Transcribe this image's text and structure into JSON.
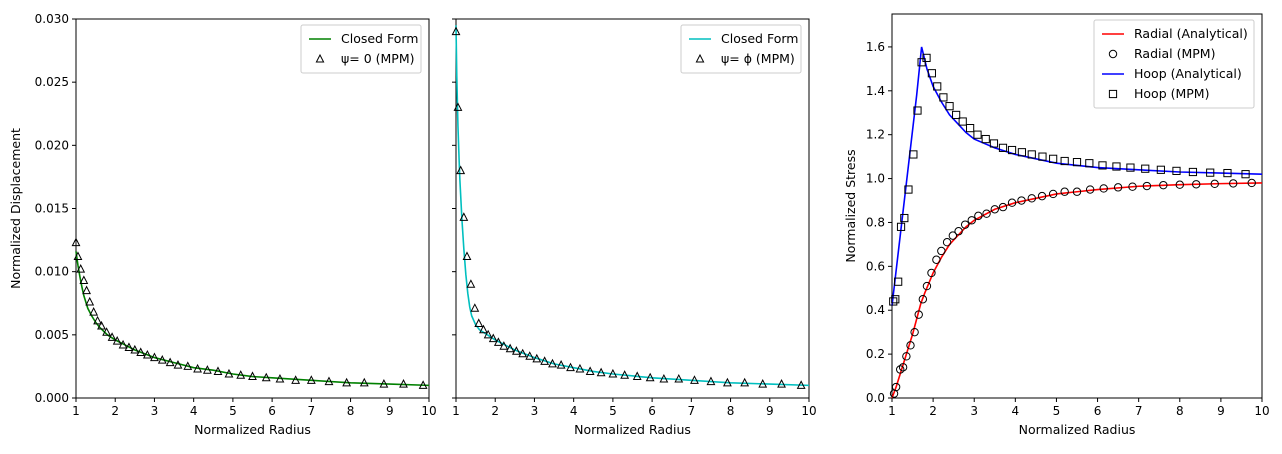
{
  "chart_data": [
    {
      "type": "line",
      "title": "",
      "xlabel": "Normalized Radius",
      "ylabel": "Normalized Displacement",
      "xlim": [
        1,
        10
      ],
      "ylim": [
        0,
        0.03
      ],
      "xticks": [
        1,
        2,
        3,
        4,
        5,
        6,
        7,
        8,
        9,
        10
      ],
      "xtick_labels": [
        "1",
        "2",
        "3",
        "4",
        "5",
        "6",
        "7",
        "8",
        "9",
        "10"
      ],
      "yticks": [
        0,
        0.005,
        0.01,
        0.015,
        0.02,
        0.025,
        0.03
      ],
      "ytick_labels": [
        "0.000",
        "0.005",
        "0.010",
        "0.015",
        "0.020",
        "0.025",
        "0.030"
      ],
      "legend_position": "top-right",
      "grid": false,
      "series": [
        {
          "name": "Closed Form",
          "kind": "line",
          "color": "#008000",
          "x": [
            1.0,
            1.05,
            1.1,
            1.15,
            1.2,
            1.3,
            1.4,
            1.5,
            1.6,
            1.8,
            2.0,
            2.25,
            2.5,
            2.75,
            3.0,
            3.5,
            4.0,
            4.5,
            5.0,
            5.5,
            6.0,
            7.0,
            8.0,
            9.0,
            10.0
          ],
          "y": [
            0.0116,
            0.0105,
            0.0096,
            0.0088,
            0.0081,
            0.0071,
            0.0065,
            0.006,
            0.0056,
            0.005,
            0.0046,
            0.0042,
            0.0038,
            0.0035,
            0.0032,
            0.0028,
            0.0024,
            0.0022,
            0.0019,
            0.0017,
            0.0016,
            0.0014,
            0.0012,
            0.0011,
            0.001
          ]
        },
        {
          "name": "ψ= 0 (MPM)",
          "kind": "markers",
          "marker": "triangle",
          "color": "#000000",
          "x": [
            1.0,
            1.05,
            1.12,
            1.2,
            1.27,
            1.35,
            1.45,
            1.55,
            1.65,
            1.78,
            1.92,
            2.05,
            2.2,
            2.35,
            2.5,
            2.65,
            2.82,
            3.0,
            3.2,
            3.4,
            3.6,
            3.85,
            4.1,
            4.35,
            4.62,
            4.9,
            5.2,
            5.5,
            5.85,
            6.2,
            6.6,
            7.0,
            7.45,
            7.9,
            8.35,
            8.85,
            9.35,
            9.85
          ],
          "y": [
            0.0123,
            0.0112,
            0.0102,
            0.0093,
            0.0085,
            0.0076,
            0.0068,
            0.0061,
            0.0057,
            0.0052,
            0.0048,
            0.0045,
            0.0042,
            0.004,
            0.0038,
            0.0036,
            0.0034,
            0.0032,
            0.003,
            0.0028,
            0.0026,
            0.0025,
            0.0023,
            0.0022,
            0.0021,
            0.0019,
            0.0018,
            0.0017,
            0.0016,
            0.0015,
            0.0014,
            0.0014,
            0.0013,
            0.0012,
            0.0012,
            0.0011,
            0.0011,
            0.001
          ]
        }
      ]
    },
    {
      "type": "line",
      "title": "",
      "xlabel": "Normalized Radius",
      "ylabel": "",
      "xlim": [
        1,
        10
      ],
      "ylim": [
        0,
        0.03
      ],
      "xticks": [
        1,
        2,
        3,
        4,
        5,
        6,
        7,
        8,
        9,
        10
      ],
      "xtick_labels": [
        "1",
        "2",
        "3",
        "4",
        "5",
        "6",
        "7",
        "8",
        "9",
        "10"
      ],
      "yticks": [
        0,
        0.005,
        0.01,
        0.015,
        0.02,
        0.025,
        0.03
      ],
      "ytick_labels": [],
      "legend_position": "top-right",
      "grid": false,
      "series": [
        {
          "name": "Closed Form",
          "kind": "line",
          "color": "#00bfbf",
          "x": [
            1.0,
            1.02,
            1.05,
            1.08,
            1.1,
            1.15,
            1.2,
            1.25,
            1.3,
            1.35,
            1.4,
            1.5,
            1.6,
            1.8,
            2.0,
            2.5,
            3.0,
            3.5,
            4.0,
            4.5,
            5.0,
            6.0,
            7.0,
            8.0,
            9.0,
            10.0
          ],
          "y": [
            0.0295,
            0.0255,
            0.0215,
            0.0188,
            0.0172,
            0.0142,
            0.0118,
            0.0098,
            0.0083,
            0.0072,
            0.0065,
            0.0058,
            0.0054,
            0.005,
            0.0046,
            0.0038,
            0.0032,
            0.0027,
            0.0024,
            0.0021,
            0.0019,
            0.0016,
            0.0014,
            0.0012,
            0.0011,
            0.001
          ]
        },
        {
          "name": "ψ= ϕ  (MPM)",
          "kind": "markers",
          "marker": "triangle",
          "color": "#000000",
          "x": [
            1.0,
            1.05,
            1.12,
            1.2,
            1.28,
            1.38,
            1.48,
            1.58,
            1.7,
            1.82,
            1.95,
            2.08,
            2.22,
            2.38,
            2.54,
            2.7,
            2.88,
            3.06,
            3.26,
            3.46,
            3.68,
            3.92,
            4.16,
            4.42,
            4.7,
            5.0,
            5.3,
            5.62,
            5.95,
            6.3,
            6.68,
            7.08,
            7.5,
            7.92,
            8.36,
            8.82,
            9.3,
            9.8
          ],
          "y": [
            0.029,
            0.023,
            0.018,
            0.0143,
            0.0112,
            0.009,
            0.0071,
            0.0059,
            0.0054,
            0.005,
            0.0047,
            0.0044,
            0.0041,
            0.0039,
            0.0037,
            0.0035,
            0.0033,
            0.0031,
            0.0029,
            0.0027,
            0.0026,
            0.0024,
            0.0023,
            0.0021,
            0.002,
            0.0019,
            0.0018,
            0.0017,
            0.0016,
            0.0015,
            0.0015,
            0.0014,
            0.0013,
            0.0012,
            0.0012,
            0.0011,
            0.0011,
            0.001
          ]
        }
      ]
    },
    {
      "type": "line",
      "title": "",
      "xlabel": "Normalized Radius",
      "ylabel": "Normalized Stress",
      "xlim": [
        1,
        10
      ],
      "ylim": [
        0,
        1.75
      ],
      "xticks": [
        1,
        2,
        3,
        4,
        5,
        6,
        7,
        8,
        9,
        10
      ],
      "xtick_labels": [
        "1",
        "2",
        "3",
        "4",
        "5",
        "6",
        "7",
        "8",
        "9",
        "10"
      ],
      "yticks": [
        0,
        0.2,
        0.4,
        0.6,
        0.8,
        1.0,
        1.2,
        1.4,
        1.6
      ],
      "ytick_labels": [
        "0.0",
        "0.2",
        "0.4",
        "0.6",
        "0.8",
        "1.0",
        "1.2",
        "1.4",
        "1.6"
      ],
      "legend_position": "top-right",
      "grid": false,
      "series": [
        {
          "name": "Radial (Analytical)",
          "kind": "line",
          "color": "#ff0000",
          "x": [
            1.0,
            1.1,
            1.2,
            1.3,
            1.4,
            1.5,
            1.6,
            1.7,
            1.8,
            2.0,
            2.2,
            2.4,
            2.6,
            2.8,
            3.0,
            3.5,
            4.0,
            4.5,
            5.0,
            5.5,
            6.0,
            7.0,
            8.0,
            9.0,
            10.0
          ],
          "y": [
            0.0,
            0.05,
            0.11,
            0.17,
            0.23,
            0.29,
            0.36,
            0.43,
            0.48,
            0.57,
            0.64,
            0.7,
            0.74,
            0.78,
            0.81,
            0.86,
            0.89,
            0.91,
            0.93,
            0.94,
            0.95,
            0.965,
            0.972,
            0.977,
            0.98
          ]
        },
        {
          "name": "Radial (MPM)",
          "kind": "markers",
          "marker": "circle",
          "color": "#000000",
          "x": [
            1.05,
            1.1,
            1.2,
            1.27,
            1.35,
            1.45,
            1.55,
            1.65,
            1.75,
            1.85,
            1.96,
            2.08,
            2.2,
            2.34,
            2.48,
            2.62,
            2.78,
            2.94,
            3.1,
            3.3,
            3.5,
            3.7,
            3.92,
            4.15,
            4.4,
            4.65,
            4.92,
            5.2,
            5.5,
            5.82,
            6.15,
            6.5,
            6.85,
            7.2,
            7.6,
            8.0,
            8.4,
            8.85,
            9.3,
            9.75
          ],
          "y": [
            0.02,
            0.05,
            0.13,
            0.14,
            0.19,
            0.24,
            0.3,
            0.38,
            0.45,
            0.51,
            0.57,
            0.63,
            0.67,
            0.71,
            0.74,
            0.76,
            0.79,
            0.81,
            0.83,
            0.84,
            0.86,
            0.87,
            0.89,
            0.9,
            0.91,
            0.92,
            0.93,
            0.94,
            0.94,
            0.95,
            0.955,
            0.96,
            0.963,
            0.966,
            0.97,
            0.972,
            0.974,
            0.976,
            0.978,
            0.98
          ]
        },
        {
          "name": "Hoop (Analytical)",
          "kind": "line",
          "color": "#0000ff",
          "x": [
            1.0,
            1.2,
            1.4,
            1.6,
            1.72,
            1.85,
            2.0,
            2.2,
            2.4,
            2.6,
            2.8,
            3.0,
            3.5,
            4.0,
            4.5,
            5.0,
            6.0,
            7.0,
            8.0,
            9.0,
            10.0
          ],
          "y": [
            0.42,
            0.74,
            1.06,
            1.38,
            1.6,
            1.5,
            1.42,
            1.35,
            1.29,
            1.25,
            1.21,
            1.18,
            1.14,
            1.11,
            1.09,
            1.07,
            1.05,
            1.04,
            1.03,
            1.025,
            1.02
          ]
        },
        {
          "name": "Hoop (MPM)",
          "kind": "markers",
          "marker": "square",
          "color": "#000000",
          "x": [
            1.03,
            1.08,
            1.15,
            1.22,
            1.3,
            1.4,
            1.52,
            1.62,
            1.72,
            1.84,
            1.97,
            2.1,
            2.25,
            2.4,
            2.56,
            2.72,
            2.9,
            3.08,
            3.28,
            3.48,
            3.7,
            3.92,
            4.16,
            4.4,
            4.66,
            4.92,
            5.2,
            5.5,
            5.8,
            6.12,
            6.46,
            6.8,
            7.16,
            7.54,
            7.92,
            8.32,
            8.74,
            9.16,
            9.6
          ],
          "y": [
            0.44,
            0.45,
            0.53,
            0.78,
            0.82,
            0.95,
            1.11,
            1.31,
            1.53,
            1.55,
            1.48,
            1.42,
            1.37,
            1.33,
            1.29,
            1.26,
            1.23,
            1.2,
            1.18,
            1.16,
            1.14,
            1.13,
            1.12,
            1.11,
            1.1,
            1.09,
            1.08,
            1.075,
            1.07,
            1.06,
            1.055,
            1.05,
            1.045,
            1.04,
            1.035,
            1.03,
            1.027,
            1.025,
            1.02
          ]
        }
      ]
    }
  ]
}
